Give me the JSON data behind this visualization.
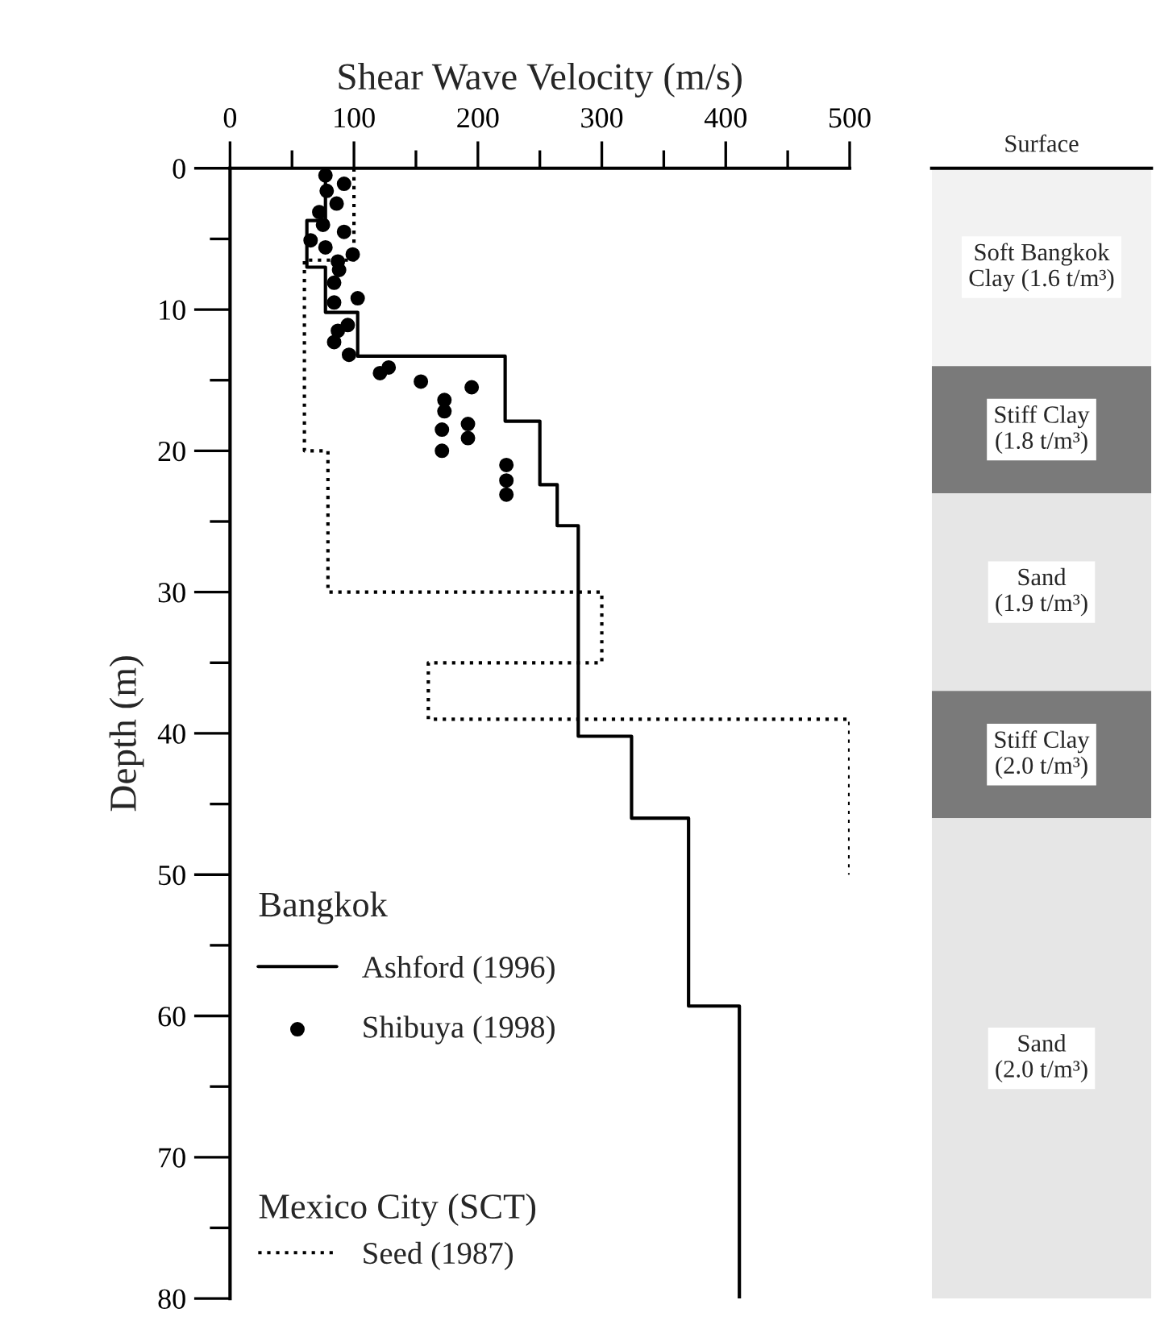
{
  "chart_data": [
    {
      "type": "line",
      "xlabel": "Shear Wave Velocity (m/s)",
      "ylabel": "Depth (m)",
      "xlim": [
        0,
        500
      ],
      "xticks": [
        0,
        {
          "value": 50,
          "label": null
        },
        100,
        {
          "value": 150,
          "label": null
        },
        200,
        {
          "value": 250,
          "label": null
        },
        300,
        {
          "value": 350,
          "label": null
        },
        400,
        {
          "value": 450,
          "label": null
        },
        500
      ],
      "ylim": [
        80,
        0
      ],
      "yticks": [
        0,
        {
          "value": 5,
          "label": null
        },
        10,
        {
          "value": 15,
          "label": null
        },
        20,
        {
          "value": 25,
          "label": null
        },
        30,
        {
          "value": 35,
          "label": null
        },
        40,
        {
          "value": 45,
          "label": null
        },
        50,
        {
          "value": 55,
          "label": null
        },
        60,
        {
          "value": 65,
          "label": null
        },
        70,
        {
          "value": 75,
          "label": null
        },
        80
      ],
      "grid": false,
      "legend": "bottom left",
      "legend_title": "Bangkok",
      "annotations": [
        "Mexico City (SCT)"
      ],
      "series": [
        {
          "name": "Ashford (1996)",
          "type": "line",
          "color": "#000000",
          "line_style": "solid",
          "marker": "none",
          "x": [
            77,
            77,
            62,
            62,
            77,
            77,
            103,
            103,
            222,
            222,
            250,
            250,
            264,
            264,
            281,
            281,
            324,
            324,
            370,
            370,
            411,
            411
          ],
          "values": [
            0,
            3.7,
            3.7,
            7.0,
            7.0,
            10.2,
            10.2,
            13.3,
            13.3,
            17.9,
            17.9,
            22.4,
            22.4,
            25.3,
            25.3,
            40.2,
            40.2,
            46.0,
            46.0,
            59.3,
            59.3,
            80
          ]
        },
        {
          "name": "Shibuya (1998)",
          "type": "scatter",
          "color": "#000000",
          "marker": "circle",
          "x": [
            92,
            77,
            78,
            86,
            72,
            75,
            92,
            65,
            77,
            99,
            87,
            88,
            84,
            84,
            103,
            95,
            87,
            84,
            96,
            121,
            128,
            154,
            195,
            173,
            173,
            171,
            192,
            192,
            171,
            223,
            223,
            223
          ],
          "values": [
            1.1,
            0.5,
            1.6,
            2.5,
            3.1,
            4.0,
            4.5,
            5.1,
            5.6,
            6.1,
            6.6,
            7.2,
            8.1,
            9.5,
            9.2,
            11.1,
            11.5,
            12.3,
            13.2,
            14.5,
            14.1,
            15.1,
            15.5,
            16.4,
            17.2,
            18.5,
            18.1,
            19.1,
            20.0,
            21.0,
            22.1,
            23.1
          ]
        },
        {
          "name": "Seed (1987)",
          "type": "line",
          "color": "#000000",
          "line_style": "dotted",
          "marker": "none",
          "x": [
            100,
            100,
            60,
            60,
            79,
            79,
            300,
            300,
            160,
            160,
            500,
            500
          ],
          "values": [
            0,
            6.5,
            6.5,
            20,
            20,
            30,
            30,
            35,
            35,
            39,
            39,
            50
          ]
        }
      ]
    },
    {
      "type": "bar",
      "stacked": true,
      "categories": [
        null
      ],
      "ylim": [
        80,
        0
      ],
      "annotations": [
        "Surface"
      ],
      "series": [
        {
          "name": "Soft Bangkok\nClay (1.6 t/m³)",
          "color": "#f2f2f2",
          "values": [
            14
          ]
        },
        {
          "name": "Stiff Clay\n(1.8 t/m³)",
          "color": "#7a7a7a",
          "values": [
            9
          ]
        },
        {
          "name": "Sand\n(1.9 t/m³)",
          "color": "#e6e6e6",
          "values": [
            14
          ]
        },
        {
          "name": "Stiff Clay\n(2.0 t/m³)",
          "color": "#7a7a7a",
          "values": [
            9
          ]
        },
        {
          "name": "Sand\n(2.0 t/m³)",
          "color": "#e6e6e6",
          "values": [
            34
          ]
        }
      ]
    }
  ]
}
